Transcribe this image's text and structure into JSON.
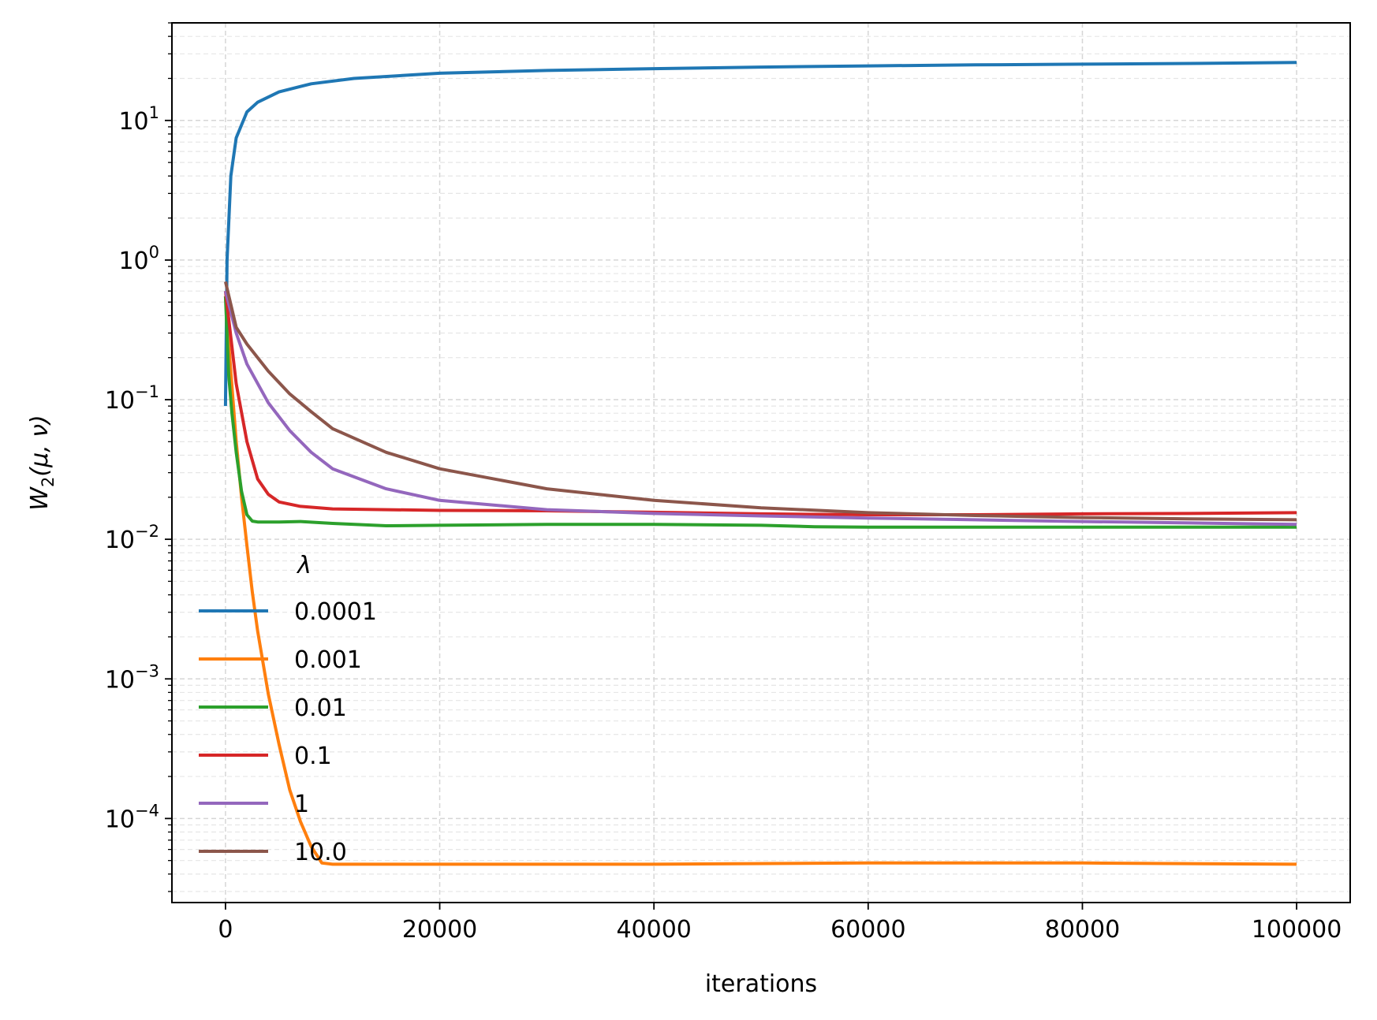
{
  "chart_data": {
    "type": "line",
    "xlabel": "iterations",
    "ylabel_base": "W",
    "ylabel_sub": "2",
    "ylabel_args": "(μ, ν)",
    "yscale": "log",
    "xlim": [
      -5000,
      105000
    ],
    "ylim": [
      2.5e-05,
      50
    ],
    "x_ticks": [
      0,
      20000,
      40000,
      60000,
      80000,
      100000
    ],
    "x_tick_labels": [
      "0",
      "20000",
      "40000",
      "60000",
      "80000",
      "100000"
    ],
    "y_ticks": [
      0.0001,
      0.001,
      0.01,
      0.1,
      1,
      10
    ],
    "y_tick_bases": [
      "10",
      "10",
      "10",
      "10",
      "10",
      "10"
    ],
    "y_tick_exponents": [
      "−4",
      "−3",
      "−2",
      "−1",
      "0",
      "1"
    ],
    "grid": true,
    "legend_title": "λ",
    "legend_position": "lower-left",
    "series": [
      {
        "name": "0.0001",
        "color": "#1f77b4",
        "points": [
          [
            0,
            0.09
          ],
          [
            150,
            1.0
          ],
          [
            500,
            4.0
          ],
          [
            1000,
            7.5
          ],
          [
            2000,
            11.5
          ],
          [
            3000,
            13.5
          ],
          [
            5000,
            16.0
          ],
          [
            8000,
            18.3
          ],
          [
            12000,
            20.0
          ],
          [
            20000,
            21.8
          ],
          [
            30000,
            22.8
          ],
          [
            40000,
            23.5
          ],
          [
            50000,
            24.1
          ],
          [
            60000,
            24.6
          ],
          [
            70000,
            25.0
          ],
          [
            80000,
            25.3
          ],
          [
            90000,
            25.6
          ],
          [
            100000,
            26.0
          ]
        ]
      },
      {
        "name": "0.001",
        "color": "#ff7f0e",
        "points": [
          [
            0,
            0.55
          ],
          [
            300,
            0.25
          ],
          [
            700,
            0.1
          ],
          [
            1000,
            0.05
          ],
          [
            1500,
            0.02
          ],
          [
            2000,
            0.009
          ],
          [
            2500,
            0.0042
          ],
          [
            3000,
            0.0022
          ],
          [
            4000,
            0.00078
          ],
          [
            5000,
            0.00034
          ],
          [
            6000,
            0.00016
          ],
          [
            7000,
            9.5e-05
          ],
          [
            8000,
            6.3e-05
          ],
          [
            9000,
            4.8e-05
          ],
          [
            10000,
            4.7e-05
          ],
          [
            20000,
            4.7e-05
          ],
          [
            40000,
            4.7e-05
          ],
          [
            60000,
            4.8e-05
          ],
          [
            80000,
            4.8e-05
          ],
          [
            100000,
            4.7e-05
          ]
        ]
      },
      {
        "name": "0.01",
        "color": "#2ca02c",
        "points": [
          [
            0,
            0.55
          ],
          [
            300,
            0.15
          ],
          [
            600,
            0.08
          ],
          [
            1000,
            0.042
          ],
          [
            1500,
            0.022
          ],
          [
            2000,
            0.015
          ],
          [
            2500,
            0.0135
          ],
          [
            3000,
            0.0133
          ],
          [
            5000,
            0.0133
          ],
          [
            7000,
            0.0134
          ],
          [
            10000,
            0.013
          ],
          [
            15000,
            0.0125
          ],
          [
            20000,
            0.0126
          ],
          [
            30000,
            0.0128
          ],
          [
            40000,
            0.0128
          ],
          [
            50000,
            0.0126
          ],
          [
            55000,
            0.0123
          ],
          [
            60000,
            0.0122
          ],
          [
            80000,
            0.0122
          ],
          [
            100000,
            0.0122
          ]
        ]
      },
      {
        "name": "0.1",
        "color": "#d62728",
        "points": [
          [
            0,
            0.6
          ],
          [
            500,
            0.28
          ],
          [
            1000,
            0.13
          ],
          [
            2000,
            0.05
          ],
          [
            3000,
            0.027
          ],
          [
            4000,
            0.021
          ],
          [
            5000,
            0.0185
          ],
          [
            7000,
            0.0172
          ],
          [
            10000,
            0.0165
          ],
          [
            20000,
            0.0161
          ],
          [
            30000,
            0.016
          ],
          [
            40000,
            0.0156
          ],
          [
            50000,
            0.0152
          ],
          [
            60000,
            0.015
          ],
          [
            70000,
            0.015
          ],
          [
            80000,
            0.0152
          ],
          [
            90000,
            0.0153
          ],
          [
            100000,
            0.0155
          ]
        ]
      },
      {
        "name": "1",
        "color": "#9467bd",
        "points": [
          [
            0,
            0.6
          ],
          [
            1000,
            0.3
          ],
          [
            2000,
            0.18
          ],
          [
            4000,
            0.095
          ],
          [
            6000,
            0.06
          ],
          [
            8000,
            0.042
          ],
          [
            10000,
            0.032
          ],
          [
            15000,
            0.023
          ],
          [
            20000,
            0.019
          ],
          [
            30000,
            0.0163
          ],
          [
            40000,
            0.0153
          ],
          [
            50000,
            0.0147
          ],
          [
            60000,
            0.0142
          ],
          [
            70000,
            0.0138
          ],
          [
            80000,
            0.0134
          ],
          [
            90000,
            0.0131
          ],
          [
            100000,
            0.0128
          ]
        ]
      },
      {
        "name": "10.0",
        "color": "#8c564b",
        "points": [
          [
            0,
            0.7
          ],
          [
            1000,
            0.33
          ],
          [
            2000,
            0.25
          ],
          [
            4000,
            0.16
          ],
          [
            6000,
            0.11
          ],
          [
            8000,
            0.082
          ],
          [
            10000,
            0.062
          ],
          [
            15000,
            0.042
          ],
          [
            20000,
            0.032
          ],
          [
            30000,
            0.023
          ],
          [
            40000,
            0.019
          ],
          [
            50000,
            0.0168
          ],
          [
            60000,
            0.0155
          ],
          [
            70000,
            0.0148
          ],
          [
            80000,
            0.0143
          ],
          [
            90000,
            0.014
          ],
          [
            100000,
            0.0138
          ]
        ]
      }
    ]
  }
}
